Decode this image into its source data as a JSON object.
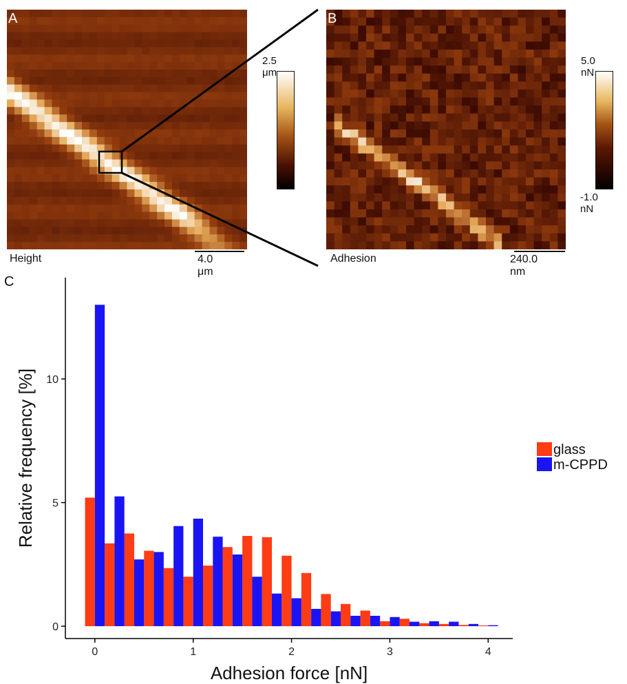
{
  "panel_a": {
    "letter": "A",
    "caption": "Height",
    "scalebar": "4.0 μm",
    "colorbar_max": "2.5 μm"
  },
  "panel_b": {
    "letter": "B",
    "caption": "Adhesion",
    "scalebar": "240.0 nm",
    "colorbar_max": "5.0 nN",
    "colorbar_min": "-1.0 nN"
  },
  "panel_c": {
    "letter": "C"
  },
  "colors": {
    "glass": "#ff3c14",
    "m_cppd": "#1a14f5",
    "afm_dark": "#5a1804",
    "afm_mid": "#a45414",
    "afm_light": "#ffffff"
  },
  "chart_data": {
    "type": "bar",
    "title": "",
    "xlabel": "Adhesion force [nN]",
    "ylabel": "Relative frequency [%]",
    "xlim": [
      -0.3,
      4.25
    ],
    "ylim": [
      -0.5,
      14.1
    ],
    "xticks": [
      0,
      1,
      2,
      3,
      4
    ],
    "yticks": [
      0,
      5,
      10
    ],
    "bin_width": 0.2,
    "x": [
      0,
      0.2,
      0.4,
      0.6,
      0.8,
      1.0,
      1.2,
      1.4,
      1.6,
      1.8,
      2.0,
      2.2,
      2.4,
      2.6,
      2.8,
      3.0,
      3.2,
      3.4,
      3.6,
      3.8,
      4.0
    ],
    "legend_position": "right",
    "series": [
      {
        "name": "glass",
        "values": [
          5.2,
          3.35,
          3.75,
          3.05,
          2.35,
          2.0,
          2.45,
          3.2,
          3.65,
          3.6,
          2.85,
          2.15,
          1.3,
          0.9,
          0.63,
          0.2,
          0.3,
          0.12,
          0.09,
          0.05,
          0.03
        ]
      },
      {
        "name": "m-CPPD",
        "values": [
          13.0,
          5.25,
          2.7,
          3.0,
          4.05,
          4.35,
          3.62,
          2.9,
          2.0,
          1.32,
          1.13,
          0.7,
          0.6,
          0.42,
          0.42,
          0.37,
          0.18,
          0.2,
          0.18,
          0.09,
          0.04
        ]
      }
    ],
    "grid": false
  }
}
